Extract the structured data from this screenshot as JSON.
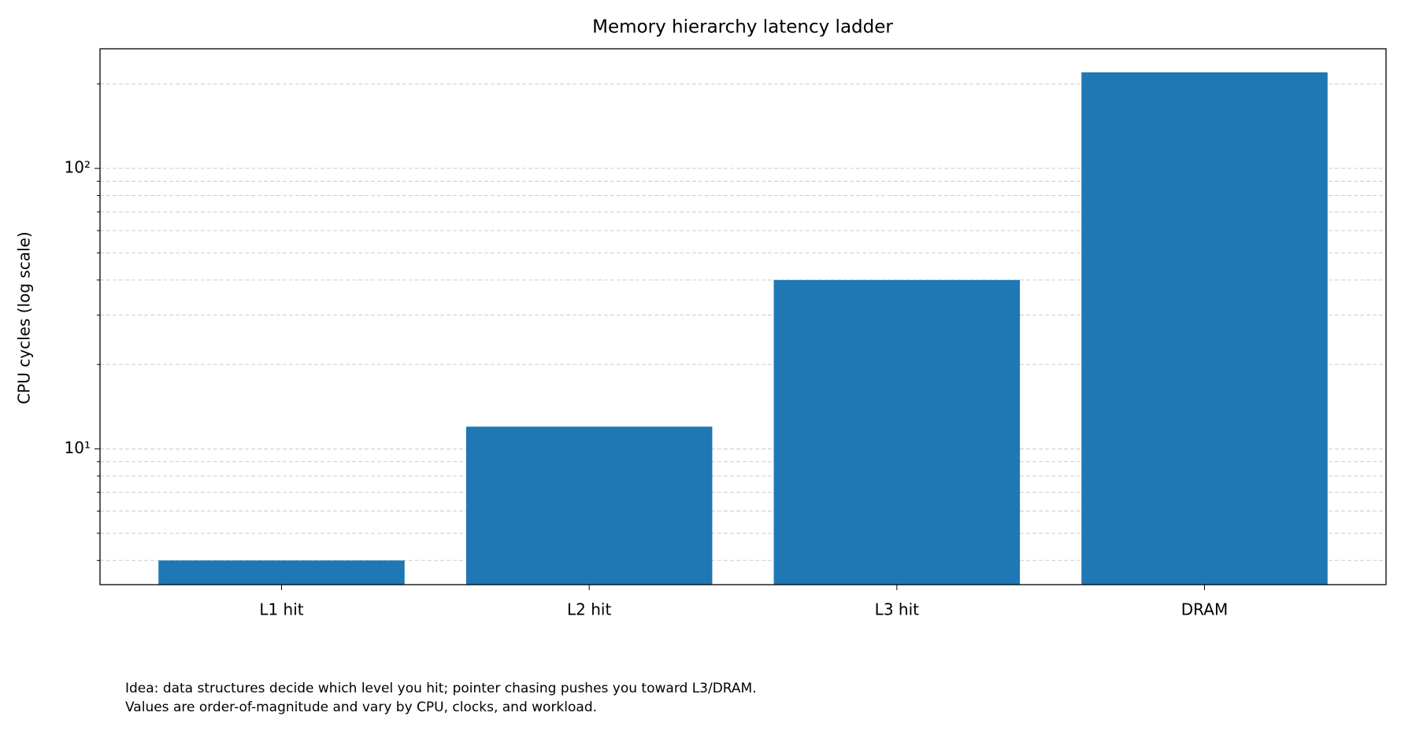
{
  "chart_data": {
    "type": "bar",
    "title": "Memory hierarchy latency ladder",
    "y_label": "CPU cycles (log scale)",
    "categories": [
      "L1 hit",
      "L2 hit",
      "L3 hit",
      "DRAM"
    ],
    "values": [
      4,
      12,
      40,
      220
    ],
    "color": "#1f77b4",
    "y_scale": "log",
    "ylim": [
      3.28,
      267
    ],
    "yticks": [
      {
        "value": 10,
        "label": "10¹"
      },
      {
        "value": 100,
        "label": "10²"
      }
    ],
    "y_minor_ticks": [
      4,
      5,
      6,
      7,
      8,
      9,
      20,
      30,
      40,
      50,
      60,
      70,
      80,
      90,
      200
    ],
    "grid": true,
    "notes": [
      "Idea: data structures decide which level you hit; pointer chasing pushes you toward L3/DRAM.",
      "Values are order-of-magnitude and vary by CPU, clocks, and workload."
    ]
  }
}
